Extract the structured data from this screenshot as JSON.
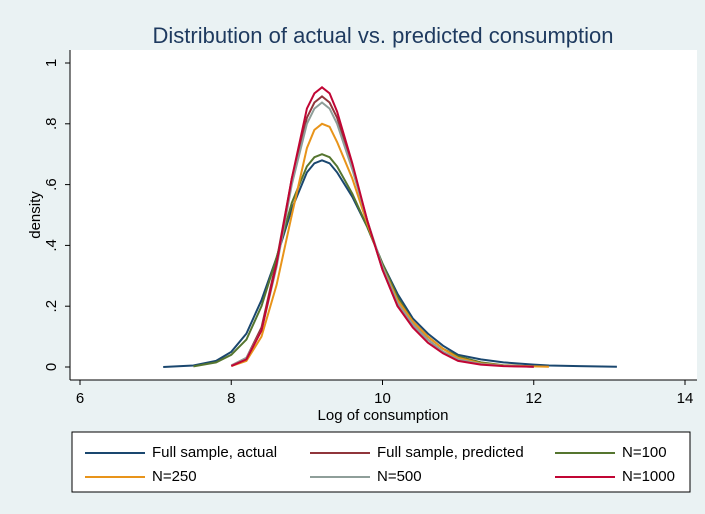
{
  "chart_data": {
    "type": "line",
    "title": "Distribution of actual vs. predicted consumption",
    "xlabel": "Log of consumption",
    "ylabel": "density",
    "x": [
      7.1,
      7.5,
      7.8,
      8.0,
      8.2,
      8.4,
      8.6,
      8.8,
      9.0,
      9.1,
      9.2,
      9.3,
      9.4,
      9.6,
      9.8,
      10.0,
      10.2,
      10.4,
      10.6,
      10.8,
      11.0,
      11.3,
      11.6,
      12.0,
      12.2,
      12.6,
      13.1
    ],
    "series": [
      {
        "name": "Full sample, actual",
        "color": "#1a476f",
        "values": [
          0,
          0.005,
          0.02,
          0.05,
          0.11,
          0.22,
          0.36,
          0.52,
          0.64,
          0.67,
          0.68,
          0.67,
          0.64,
          0.56,
          0.46,
          0.34,
          0.24,
          0.16,
          0.11,
          0.07,
          0.04,
          0.025,
          0.015,
          0.008,
          0.005,
          0.003,
          0.001
        ]
      },
      {
        "name": "Full sample, predicted",
        "color": "#90353b",
        "values": [
          null,
          null,
          null,
          0.005,
          0.03,
          0.13,
          0.35,
          0.62,
          0.82,
          0.87,
          0.89,
          0.87,
          0.82,
          0.66,
          0.48,
          0.32,
          0.2,
          0.14,
          0.09,
          0.05,
          0.025,
          0.01,
          0.004,
          0.001,
          null,
          null,
          null
        ]
      },
      {
        "name": "N=100",
        "color": "#55752f",
        "values": [
          null,
          0.002,
          0.015,
          0.04,
          0.09,
          0.2,
          0.36,
          0.54,
          0.66,
          0.69,
          0.7,
          0.69,
          0.66,
          0.57,
          0.46,
          0.34,
          0.23,
          0.15,
          0.1,
          0.06,
          0.035,
          0.015,
          0.006,
          0.002,
          null,
          null,
          null
        ]
      },
      {
        "name": "N=250",
        "color": "#e8941a",
        "values": [
          null,
          null,
          null,
          0.003,
          0.02,
          0.1,
          0.27,
          0.5,
          0.72,
          0.78,
          0.8,
          0.79,
          0.74,
          0.62,
          0.47,
          0.33,
          0.22,
          0.15,
          0.1,
          0.06,
          0.03,
          0.012,
          0.005,
          0.002,
          0.001,
          null,
          null
        ]
      },
      {
        "name": "N=500",
        "color": "#8e9e99",
        "values": [
          null,
          null,
          null,
          0.004,
          0.03,
          0.12,
          0.33,
          0.6,
          0.8,
          0.85,
          0.87,
          0.85,
          0.8,
          0.65,
          0.48,
          0.33,
          0.21,
          0.14,
          0.09,
          0.05,
          0.025,
          0.01,
          0.004,
          0.001,
          null,
          null,
          null
        ]
      },
      {
        "name": "N=1000",
        "color": "#c10534",
        "values": [
          null,
          null,
          null,
          0.003,
          0.025,
          0.12,
          0.34,
          0.62,
          0.85,
          0.9,
          0.92,
          0.9,
          0.84,
          0.67,
          0.48,
          0.32,
          0.2,
          0.13,
          0.08,
          0.045,
          0.02,
          0.008,
          0.003,
          0.001,
          null,
          null,
          null
        ]
      }
    ],
    "xlim": [
      6,
      14
    ],
    "xticks": [
      6,
      8,
      10,
      12,
      14
    ],
    "ylim": [
      0,
      1
    ],
    "yticks": [
      0,
      {
        "value": 0.2,
        "label": ".2"
      },
      {
        "value": 0.4,
        "label": ".4"
      },
      {
        "value": 0.6,
        "label": ".6"
      },
      {
        "value": 0.8,
        "label": ".8"
      },
      1
    ],
    "legend": "bottom"
  }
}
